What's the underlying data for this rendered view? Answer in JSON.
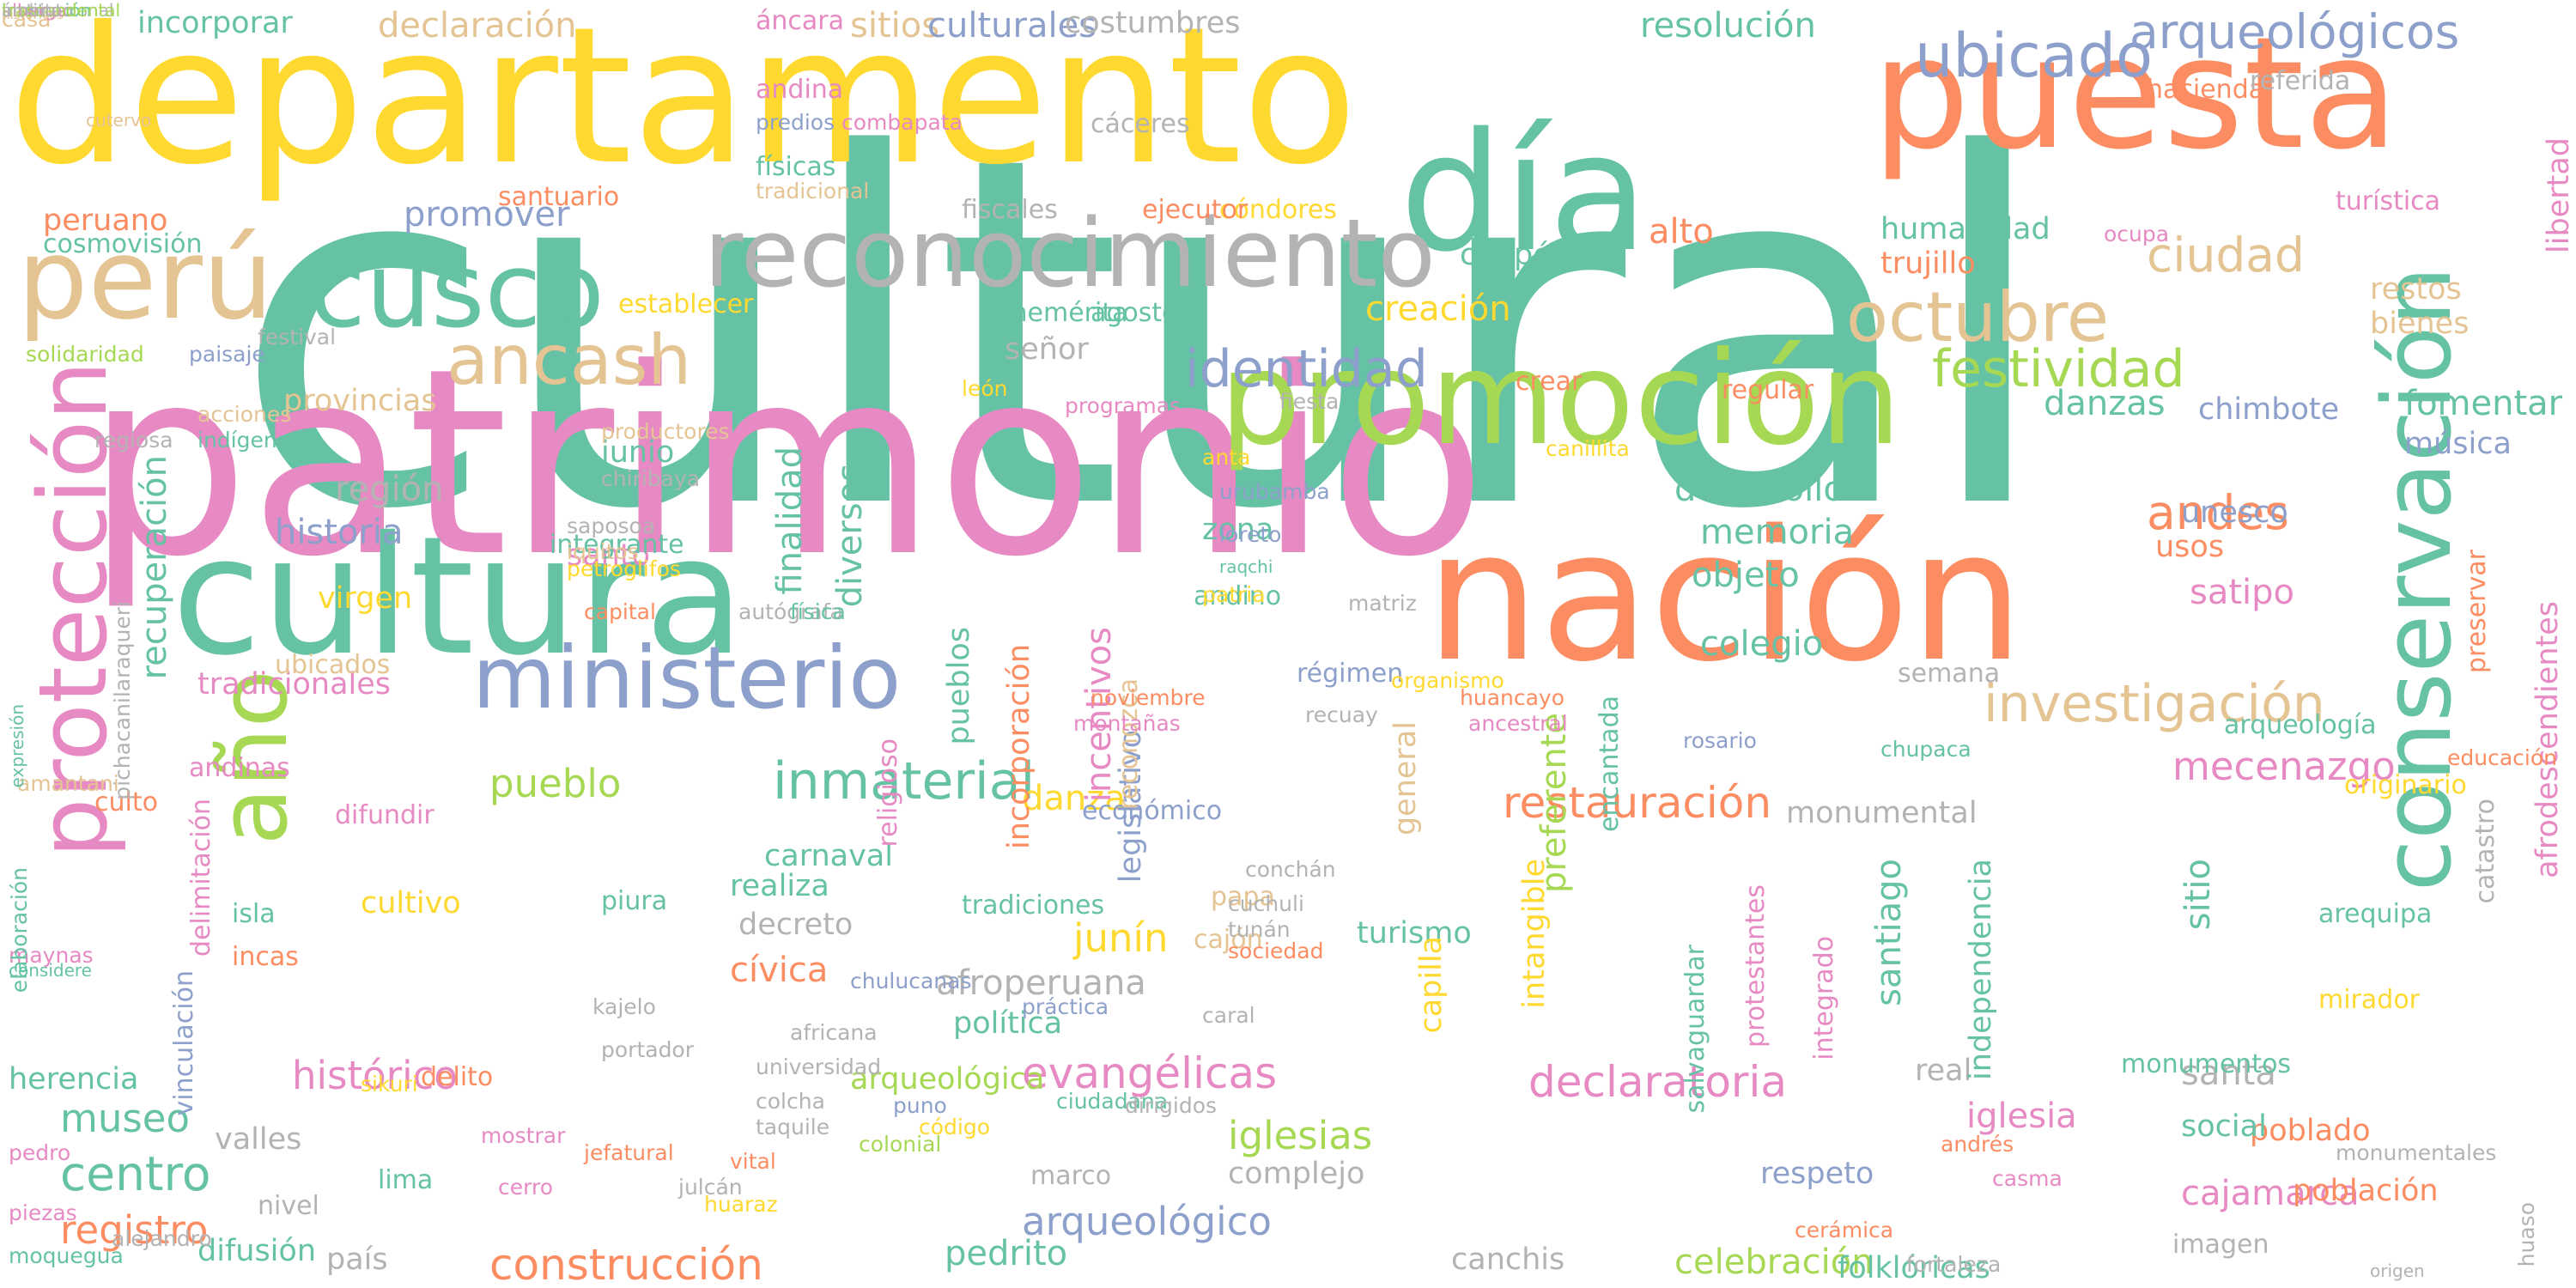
{
  "palette": {
    "teal": "#66c2a5",
    "orange": "#fc8d62",
    "blue": "#8da0cb",
    "pink": "#e78ac3",
    "green": "#a6d854",
    "yellow": "#ffd92f",
    "tan": "#e5c494",
    "gray": "#b3b3b3"
  },
  "words": [
    {
      "text": "cultural",
      "color": "teal"
    },
    {
      "text": "patrimonio",
      "color": "pink"
    },
    {
      "text": "departamento",
      "color": "yellow"
    },
    {
      "text": "nación",
      "color": "orange"
    },
    {
      "text": "cultura",
      "color": "teal"
    },
    {
      "text": "puesta",
      "color": "orange"
    },
    {
      "text": "promoción",
      "color": "green"
    },
    {
      "text": "día",
      "color": "teal"
    },
    {
      "text": "reconocimiento",
      "color": "gray"
    },
    {
      "text": "año",
      "color": "green"
    },
    {
      "text": "ministerio",
      "color": "blue"
    },
    {
      "text": "cusco",
      "color": "teal"
    },
    {
      "text": "perú",
      "color": "tan"
    },
    {
      "text": "conservación",
      "color": "teal"
    },
    {
      "text": "protección",
      "color": "pink"
    },
    {
      "text": "ancash",
      "color": "tan"
    },
    {
      "text": "octubre",
      "color": "tan"
    },
    {
      "text": "inmaterial",
      "color": "teal"
    },
    {
      "text": "investigación",
      "color": "tan"
    },
    {
      "text": "identidad",
      "color": "blue"
    },
    {
      "text": "ubicado",
      "color": "blue"
    },
    {
      "text": "festividad",
      "color": "green"
    },
    {
      "text": "evangélicas",
      "color": "pink"
    },
    {
      "text": "declaratoria",
      "color": "pink"
    },
    {
      "text": "restauración",
      "color": "orange"
    },
    {
      "text": "construcción",
      "color": "orange"
    },
    {
      "text": "mecenazgo",
      "color": "pink"
    },
    {
      "text": "arqueológicos",
      "color": "blue"
    },
    {
      "text": "ciudad",
      "color": "tan"
    },
    {
      "text": "iglesias",
      "color": "green"
    },
    {
      "text": "arqueológico",
      "color": "blue"
    },
    {
      "text": "cajamarca",
      "color": "pink"
    },
    {
      "text": "celebración",
      "color": "green"
    },
    {
      "text": "centro",
      "color": "teal"
    },
    {
      "text": "registro",
      "color": "orange"
    },
    {
      "text": "museo",
      "color": "teal"
    },
    {
      "text": "histórico",
      "color": "pink"
    },
    {
      "text": "pueblo",
      "color": "green"
    },
    {
      "text": "danza",
      "color": "yellow"
    },
    {
      "text": "desarrollo",
      "color": "teal"
    },
    {
      "text": "memoria",
      "color": "teal"
    },
    {
      "text": "objeto",
      "color": "teal"
    },
    {
      "text": "historia",
      "color": "blue"
    },
    {
      "text": "región",
      "color": "gray"
    },
    {
      "text": "recuperación",
      "color": "teal"
    },
    {
      "text": "finalidad",
      "color": "teal"
    },
    {
      "text": "diversos",
      "color": "teal"
    },
    {
      "text": "andes",
      "color": "orange"
    },
    {
      "text": "complejo",
      "color": "gray"
    },
    {
      "text": "respeto",
      "color": "blue"
    },
    {
      "text": "pedrito",
      "color": "teal"
    },
    {
      "text": "canchis",
      "color": "gray"
    },
    {
      "text": "folklóricas",
      "color": "teal"
    },
    {
      "text": "población",
      "color": "orange"
    },
    {
      "text": "poblado",
      "color": "orange"
    },
    {
      "text": "social",
      "color": "teal"
    },
    {
      "text": "santa",
      "color": "gray"
    },
    {
      "text": "iglesia",
      "color": "pink"
    },
    {
      "text": "real",
      "color": "gray"
    },
    {
      "text": "sitio",
      "color": "teal"
    },
    {
      "text": "monumental",
      "color": "gray"
    },
    {
      "text": "carnaval",
      "color": "teal"
    },
    {
      "text": "económico",
      "color": "blue"
    },
    {
      "text": "arqueológica",
      "color": "green"
    },
    {
      "text": "afroperuana",
      "color": "gray"
    },
    {
      "text": "política",
      "color": "teal"
    },
    {
      "text": "junín",
      "color": "yellow"
    },
    {
      "text": "cívica",
      "color": "orange"
    },
    {
      "text": "decreto",
      "color": "gray"
    },
    {
      "text": "tradicionales",
      "color": "pink"
    },
    {
      "text": "difusión",
      "color": "teal"
    },
    {
      "text": "valles",
      "color": "gray"
    },
    {
      "text": "herencia",
      "color": "teal"
    },
    {
      "text": "lima",
      "color": "teal"
    },
    {
      "text": "país",
      "color": "gray"
    },
    {
      "text": "incorporar",
      "color": "teal"
    },
    {
      "text": "declaración",
      "color": "tan"
    },
    {
      "text": "sitios",
      "color": "tan"
    },
    {
      "text": "culturales",
      "color": "blue"
    },
    {
      "text": "costumbres",
      "color": "gray"
    },
    {
      "text": "resolución",
      "color": "teal"
    },
    {
      "text": "humanidad",
      "color": "teal"
    },
    {
      "text": "libertad",
      "color": "pink"
    },
    {
      "text": "promover",
      "color": "blue"
    },
    {
      "text": "peruano",
      "color": "orange"
    },
    {
      "text": "cosmovisión",
      "color": "teal"
    },
    {
      "text": "chepén",
      "color": "teal"
    },
    {
      "text": "creación",
      "color": "yellow"
    },
    {
      "text": "alto",
      "color": "orange"
    },
    {
      "text": "danzas",
      "color": "teal"
    },
    {
      "text": "fomentar",
      "color": "teal"
    },
    {
      "text": "música",
      "color": "blue"
    },
    {
      "text": "chimbote",
      "color": "blue"
    },
    {
      "text": "unesco",
      "color": "blue"
    },
    {
      "text": "satipo",
      "color": "pink"
    },
    {
      "text": "usos",
      "color": "orange"
    },
    {
      "text": "colegio",
      "color": "teal"
    },
    {
      "text": "trujillo",
      "color": "orange"
    },
    {
      "text": "restos",
      "color": "tan"
    },
    {
      "text": "bienes",
      "color": "tan"
    },
    {
      "text": "santo",
      "color": "pink"
    },
    {
      "text": "virgen",
      "color": "yellow"
    },
    {
      "text": "cultivo",
      "color": "yellow"
    },
    {
      "text": "isla",
      "color": "teal"
    },
    {
      "text": "incas",
      "color": "orange"
    },
    {
      "text": "piura",
      "color": "teal"
    },
    {
      "text": "delito",
      "color": "orange"
    },
    {
      "text": "culto",
      "color": "orange"
    },
    {
      "text": "difundir",
      "color": "pink"
    },
    {
      "text": "tradiciones",
      "color": "teal"
    },
    {
      "text": "papa",
      "color": "tan"
    },
    {
      "text": "cajón",
      "color": "tan"
    },
    {
      "text": "turismo",
      "color": "teal"
    },
    {
      "text": "realiza",
      "color": "teal"
    },
    {
      "text": "andinas",
      "color": "pink"
    },
    {
      "text": "provincias",
      "color": "tan"
    },
    {
      "text": "junio",
      "color": "teal"
    },
    {
      "text": "zona",
      "color": "teal"
    },
    {
      "text": "andino",
      "color": "teal"
    },
    {
      "text": "régimen",
      "color": "blue"
    },
    {
      "text": "señor",
      "color": "gray"
    },
    {
      "text": "agosto",
      "color": "teal"
    },
    {
      "text": "benemérita",
      "color": "teal"
    },
    {
      "text": "establecer",
      "color": "yellow"
    },
    {
      "text": "santuario",
      "color": "orange"
    },
    {
      "text": "cóndores",
      "color": "yellow"
    },
    {
      "text": "fiscales",
      "color": "gray"
    },
    {
      "text": "ejecutor",
      "color": "orange"
    },
    {
      "text": "fiesta",
      "color": "gray"
    },
    {
      "text": "crear",
      "color": "orange"
    },
    {
      "text": "regular",
      "color": "orange"
    },
    {
      "text": "marco",
      "color": "gray"
    },
    {
      "text": "nivel",
      "color": "gray"
    },
    {
      "text": "imagen",
      "color": "gray"
    },
    {
      "text": "semana",
      "color": "gray"
    },
    {
      "text": "arqueología",
      "color": "teal"
    },
    {
      "text": "originario",
      "color": "yellow"
    },
    {
      "text": "mirador",
      "color": "yellow"
    },
    {
      "text": "arequipa",
      "color": "teal"
    },
    {
      "text": "moquegua",
      "color": "teal"
    },
    {
      "text": "alejandro",
      "color": "gray"
    },
    {
      "text": "pedro",
      "color": "pink"
    },
    {
      "text": "piezas",
      "color": "pink"
    },
    {
      "text": "santiago",
      "color": "teal"
    },
    {
      "text": "integrado",
      "color": "pink"
    },
    {
      "text": "independencia",
      "color": "teal"
    },
    {
      "text": "afrodescendientes",
      "color": "pink"
    },
    {
      "text": "preservar",
      "color": "orange"
    },
    {
      "text": "educación",
      "color": "orange"
    },
    {
      "text": "catastro",
      "color": "gray"
    },
    {
      "text": "salvaguardar",
      "color": "teal"
    },
    {
      "text": "preferente",
      "color": "green"
    },
    {
      "text": "intangible",
      "color": "yellow"
    },
    {
      "text": "general",
      "color": "tan"
    },
    {
      "text": "capilla",
      "color": "yellow"
    },
    {
      "text": "encantada",
      "color": "teal"
    },
    {
      "text": "protestantes",
      "color": "pink"
    },
    {
      "text": "incentivos",
      "color": "pink"
    },
    {
      "text": "incorporación",
      "color": "orange"
    },
    {
      "text": "pueblos",
      "color": "teal"
    },
    {
      "text": "legislativo",
      "color": "blue"
    },
    {
      "text": "reconozca",
      "color": "tan"
    },
    {
      "text": "religioso",
      "color": "pink"
    },
    {
      "text": "delimitación",
      "color": "pink"
    },
    {
      "text": "vinculación",
      "color": "blue"
    },
    {
      "text": "ubicados",
      "color": "tan"
    },
    {
      "text": "integrante",
      "color": "teal"
    },
    {
      "text": "cáceres",
      "color": "gray"
    },
    {
      "text": "físicas",
      "color": "teal"
    },
    {
      "text": "tradicional",
      "color": "tan"
    },
    {
      "text": "andina",
      "color": "pink"
    },
    {
      "text": "áncara",
      "color": "pink"
    },
    {
      "text": "combapata",
      "color": "pink"
    },
    {
      "text": "predios",
      "color": "blue"
    },
    {
      "text": "casa",
      "color": "tan"
    },
    {
      "text": "cutervo",
      "color": "tan"
    },
    {
      "text": "históricos",
      "color": "tan"
    },
    {
      "text": "festival",
      "color": "gray"
    },
    {
      "text": "paisaje",
      "color": "blue"
    },
    {
      "text": "solidaridad",
      "color": "green"
    },
    {
      "text": "acciones",
      "color": "tan"
    },
    {
      "text": "indígenas",
      "color": "teal"
    },
    {
      "text": "productores",
      "color": "tan"
    },
    {
      "text": "chiribaya",
      "color": "gray"
    },
    {
      "text": "saposoa",
      "color": "gray"
    },
    {
      "text": "iquitos",
      "color": "tan"
    },
    {
      "text": "petroglifos",
      "color": "yellow"
    },
    {
      "text": "capital",
      "color": "orange"
    },
    {
      "text": "autógrafa",
      "color": "gray"
    },
    {
      "text": "física",
      "color": "teal"
    },
    {
      "text": "león",
      "color": "yellow"
    },
    {
      "text": "programas",
      "color": "pink"
    },
    {
      "text": "anta",
      "color": "yellow"
    },
    {
      "text": "canillita",
      "color": "yellow"
    },
    {
      "text": "urubamba",
      "color": "blue"
    },
    {
      "text": "loreto",
      "color": "blue"
    },
    {
      "text": "raqchi",
      "color": "teal"
    },
    {
      "text": "patria",
      "color": "yellow"
    },
    {
      "text": "matriz",
      "color": "gray"
    },
    {
      "text": "organismo",
      "color": "yellow"
    },
    {
      "text": "recuay",
      "color": "gray"
    },
    {
      "text": "huancayo",
      "color": "orange"
    },
    {
      "text": "ancestral",
      "color": "pink"
    },
    {
      "text": "rosario",
      "color": "blue"
    },
    {
      "text": "chupaca",
      "color": "teal"
    },
    {
      "text": "conchán",
      "color": "gray"
    },
    {
      "text": "cuchuli",
      "color": "gray"
    },
    {
      "text": "tunán",
      "color": "gray"
    },
    {
      "text": "sociedad",
      "color": "orange"
    },
    {
      "text": "noviembre",
      "color": "orange"
    },
    {
      "text": "montañas",
      "color": "pink"
    },
    {
      "text": "ciudadana",
      "color": "teal"
    },
    {
      "text": "dirigidos",
      "color": "gray"
    },
    {
      "text": "puno",
      "color": "blue"
    },
    {
      "text": "código",
      "color": "yellow"
    },
    {
      "text": "colonial",
      "color": "green"
    },
    {
      "text": "práctica",
      "color": "blue"
    },
    {
      "text": "chulucanas",
      "color": "blue"
    },
    {
      "text": "africana",
      "color": "gray"
    },
    {
      "text": "universidad",
      "color": "gray"
    },
    {
      "text": "colcha",
      "color": "gray"
    },
    {
      "text": "taquile",
      "color": "gray"
    },
    {
      "text": "vital",
      "color": "orange"
    },
    {
      "text": "huaraz",
      "color": "yellow"
    },
    {
      "text": "kajelo",
      "color": "gray"
    },
    {
      "text": "portador",
      "color": "gray"
    },
    {
      "text": "mostrar",
      "color": "pink"
    },
    {
      "text": "sikuri",
      "color": "yellow"
    },
    {
      "text": "cerro",
      "color": "pink"
    },
    {
      "text": "julcán",
      "color": "gray"
    },
    {
      "text": "jefatural",
      "color": "orange"
    },
    {
      "text": "caral",
      "color": "gray"
    },
    {
      "text": "cerámica",
      "color": "orange"
    },
    {
      "text": "casma",
      "color": "pink"
    },
    {
      "text": "fortaleza",
      "color": "gray"
    },
    {
      "text": "andrés",
      "color": "orange"
    },
    {
      "text": "monumentales",
      "color": "gray"
    },
    {
      "text": "huaso",
      "color": "gray"
    },
    {
      "text": "origen",
      "color": "gray"
    },
    {
      "text": "monumentos",
      "color": "teal"
    },
    {
      "text": "hacienda",
      "color": "orange"
    },
    {
      "text": "referida",
      "color": "gray"
    },
    {
      "text": "turística",
      "color": "pink"
    },
    {
      "text": "ocupa",
      "color": "pink"
    },
    {
      "text": "regiosa",
      "color": "gray"
    },
    {
      "text": "pichacanilaraqueri",
      "color": "gray"
    },
    {
      "text": "amantani",
      "color": "tan"
    },
    {
      "text": "expresión",
      "color": "teal"
    },
    {
      "text": "maynas",
      "color": "pink"
    },
    {
      "text": "elaboración",
      "color": "teal"
    },
    {
      "text": "considere",
      "color": "teal"
    },
    {
      "text": "institución",
      "color": "teal"
    },
    {
      "text": "internacional",
      "color": "gray"
    },
    {
      "text": "instituto",
      "color": "gray"
    },
    {
      "text": "alberga",
      "color": "pink"
    },
    {
      "text": "trascendental",
      "color": "green"
    },
    {
      "text": "ámbito",
      "color": "gray"
    }
  ]
}
